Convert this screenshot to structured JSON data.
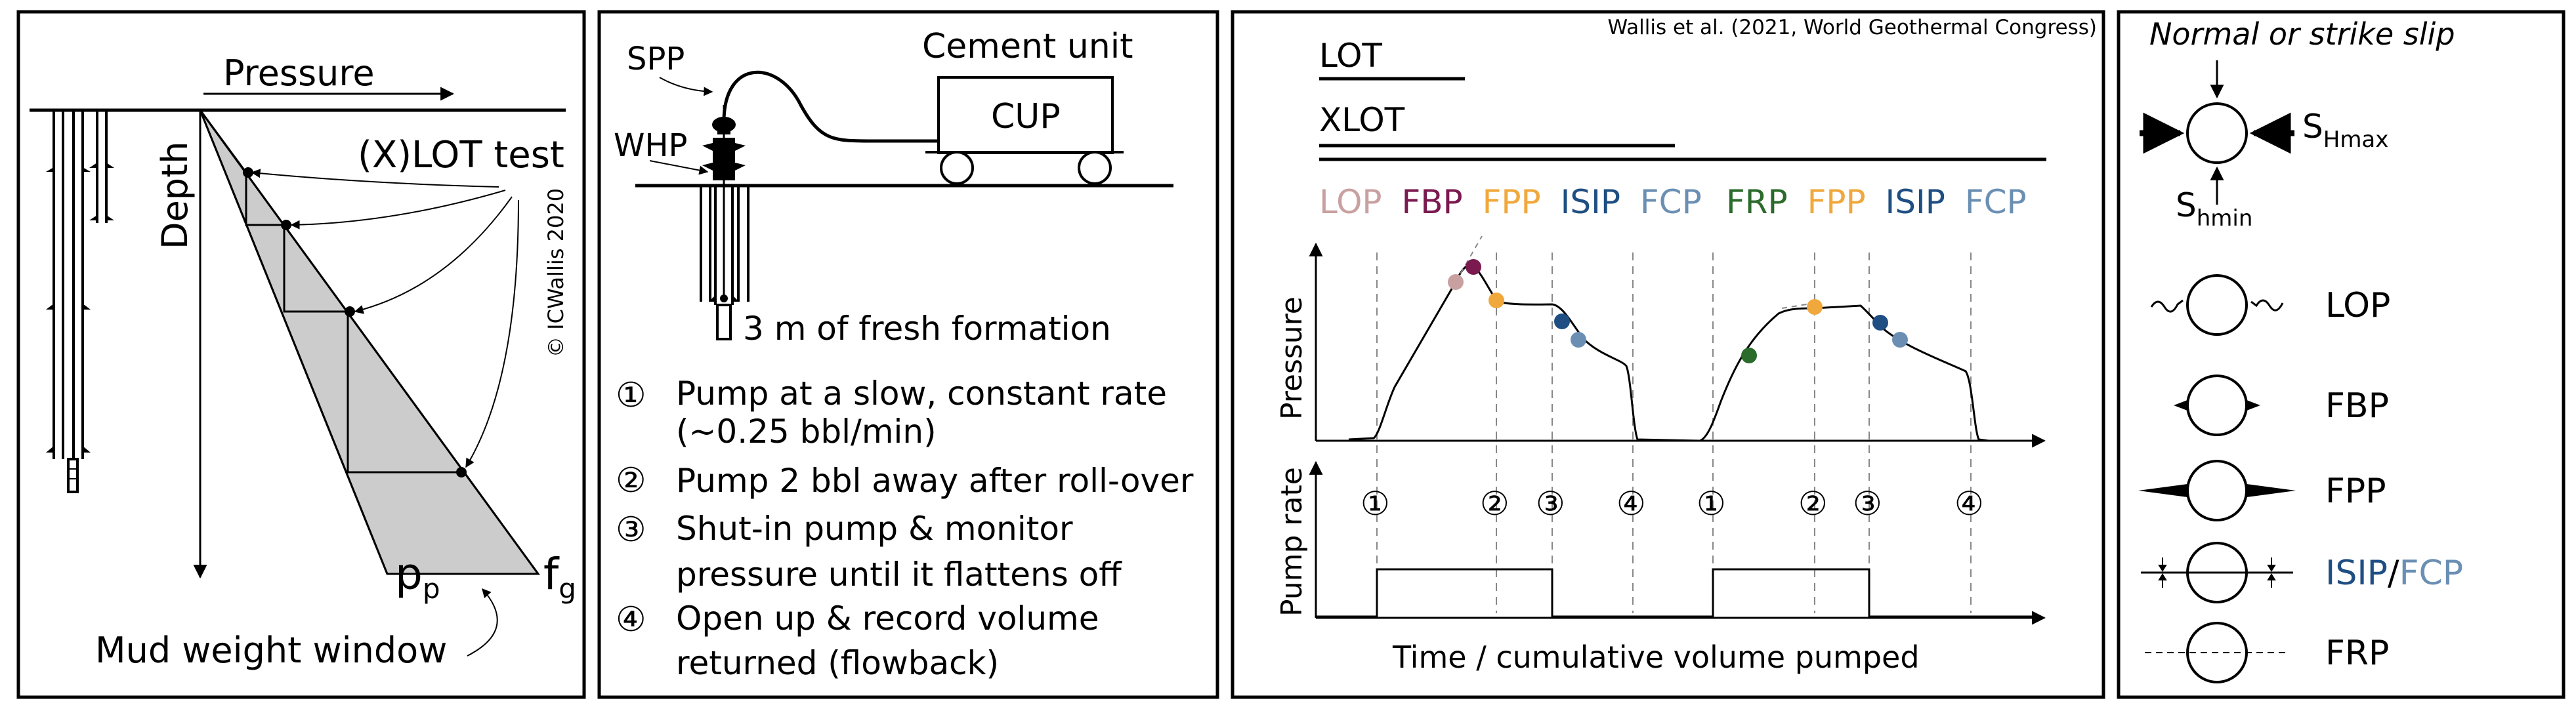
{
  "colors": {
    "LOP": "#c9a0a0",
    "FBP": "#7a1a4f",
    "FPP": "#f0a83c",
    "ISIP": "#1f4e82",
    "FCP": "#6a8fb3",
    "FRP": "#2b6b2b",
    "wedge_fill": "#cccccc"
  },
  "panel1": {
    "pressure_label": "Pressure",
    "depth_label": "Depth",
    "test_label": "(X)LOT test",
    "copyright": "© ICWallis 2020",
    "pp_main": "p",
    "pp_sub": "p",
    "fg_main": "f",
    "fg_sub": "g",
    "window_label": "Mud weight window"
  },
  "panel2": {
    "spp_label": "SPP",
    "whp_label": "WHP",
    "unit_label": "Cement unit",
    "cup_label": "CUP",
    "formation_label": "3 m of fresh formation",
    "steps": [
      {
        "num": "①",
        "lines": [
          "Pump at a slow, constant rate",
          "(~0.25 bbl/min)"
        ]
      },
      {
        "num": "②",
        "lines": [
          "Pump 2 bbl away after roll-over"
        ]
      },
      {
        "num": "③",
        "lines": [
          "Shut-in pump & monitor",
          "pressure until it flattens off"
        ]
      },
      {
        "num": "④",
        "lines": [
          "Open up & record volume",
          "returned (flowback)"
        ]
      }
    ]
  },
  "panel3": {
    "citation": "Wallis et al. (2021, World Geothermal Congress)",
    "lot_label": "LOT",
    "xlot_label": "XLOT",
    "legend_cycle1": [
      "LOP",
      "FBP",
      "FPP",
      "ISIP",
      "FCP"
    ],
    "legend_cycle2": [
      "FRP",
      "FPP",
      "ISIP",
      "FCP"
    ],
    "pressure_axis": "Pressure",
    "pumprate_axis": "Pump rate",
    "time_axis": "Time / cumulative volume pumped",
    "phase_markers_cycle1": [
      "①",
      "②",
      "③",
      "④"
    ],
    "phase_markers_cycle2": [
      "①",
      "②",
      "③",
      "④"
    ]
  },
  "panel4": {
    "title": "Normal or strike slip",
    "shmax_main": "S",
    "shmax_sub": "Hmax",
    "shmin_main": "S",
    "shmin_sub": "hmin",
    "rows": [
      {
        "label": "LOP",
        "color_key": "LOP"
      },
      {
        "label": "FBP",
        "color_key": "FBP"
      },
      {
        "label": "FPP",
        "color_key": "FPP"
      },
      {
        "label": "ISIP",
        "label2": "/",
        "label3": "FCP",
        "color_key": "ISIP"
      },
      {
        "label": "FRP",
        "color_key": "FRP"
      }
    ]
  }
}
